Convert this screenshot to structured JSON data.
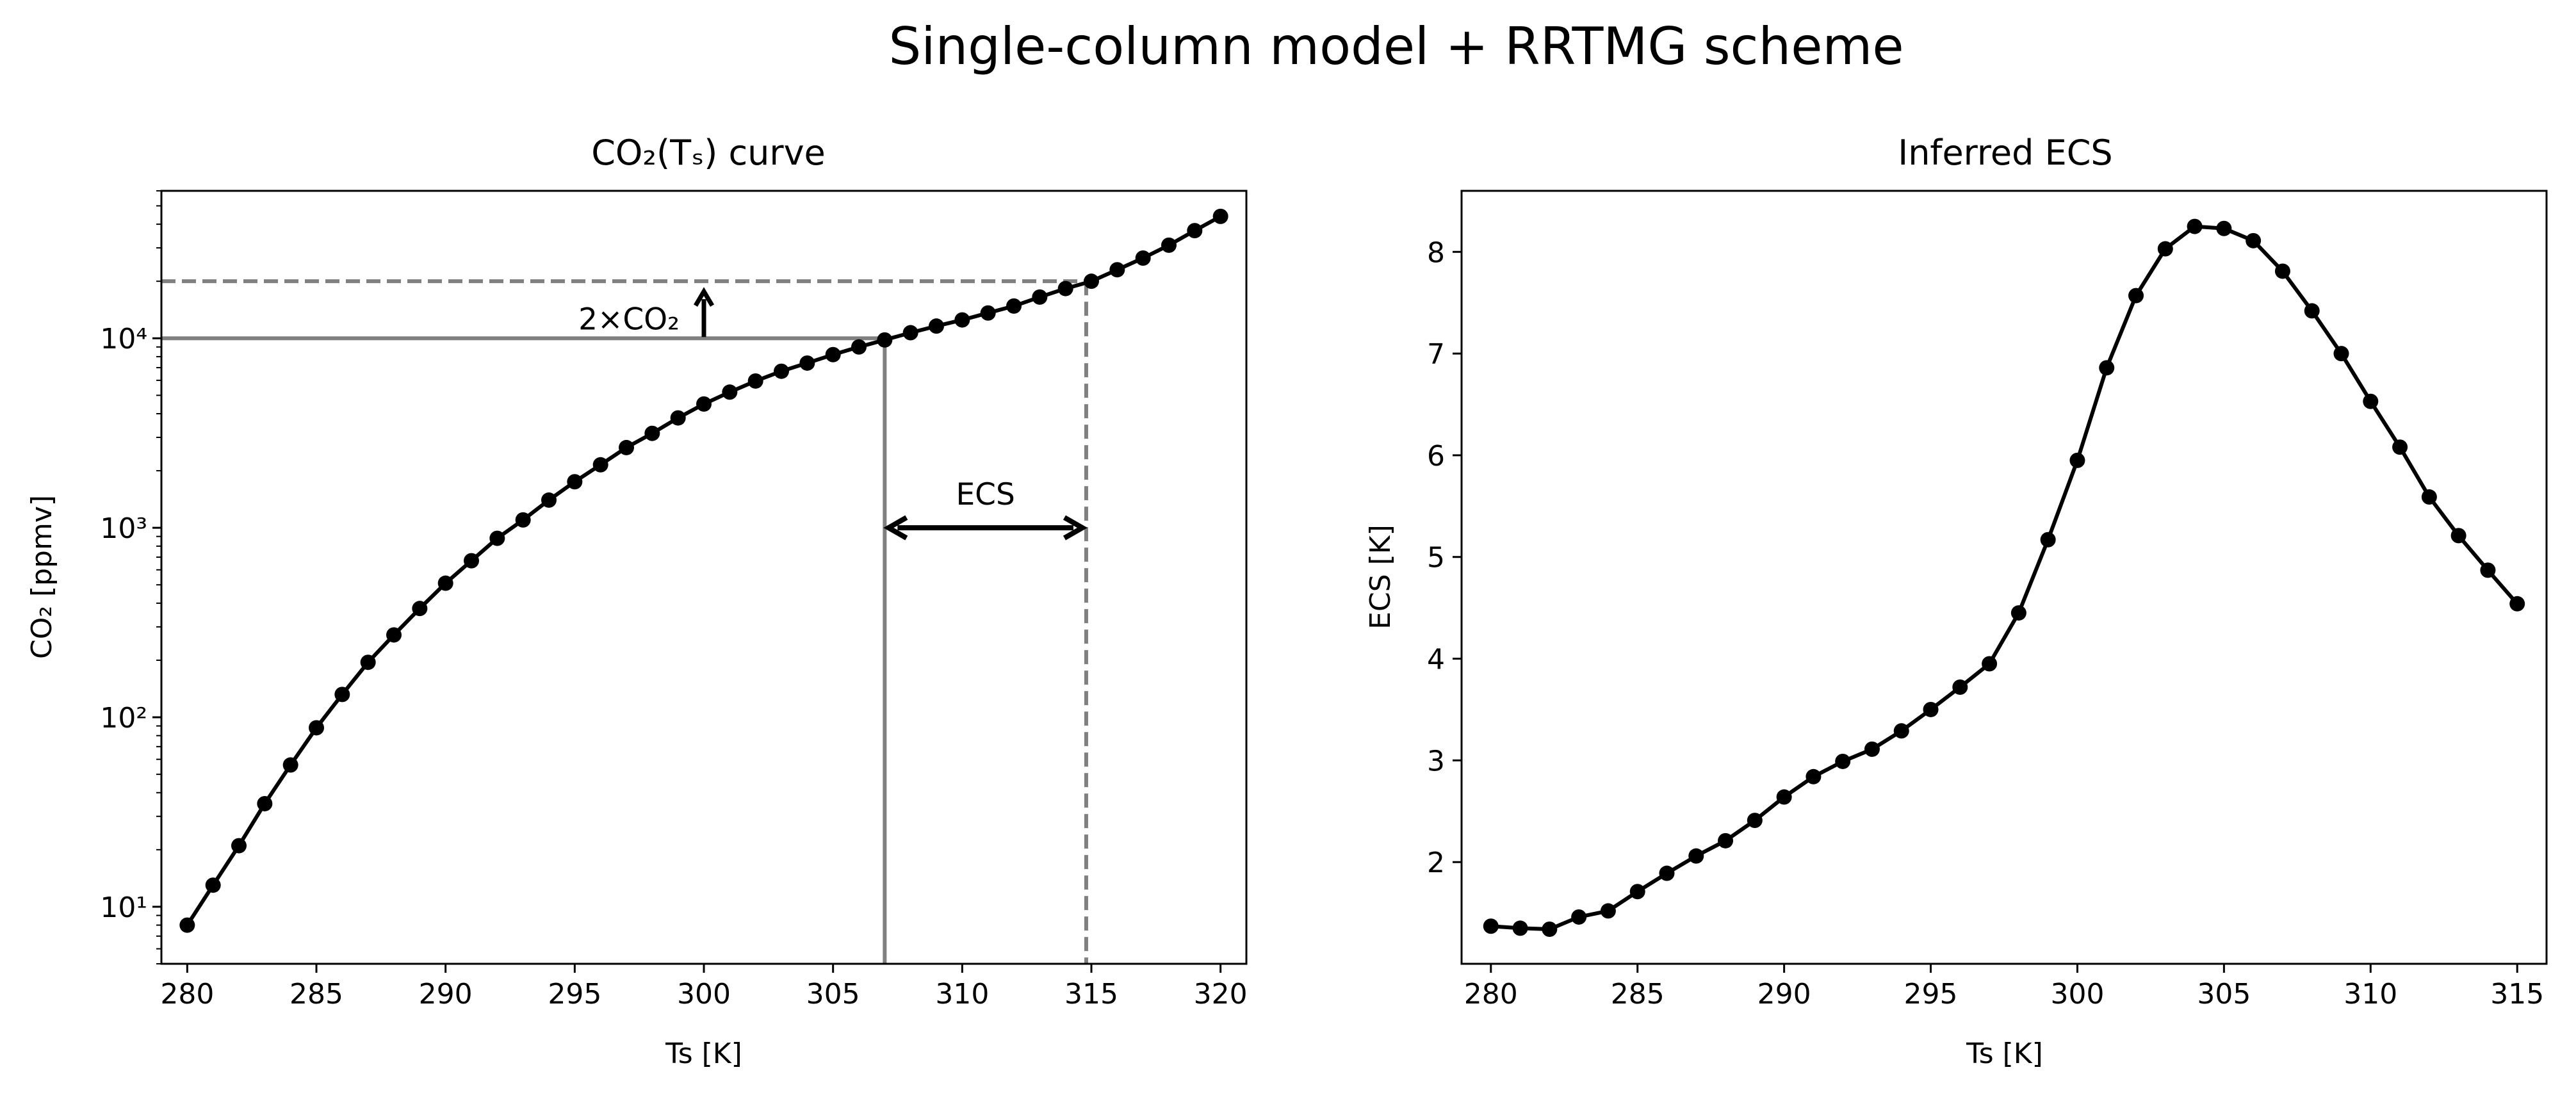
{
  "suptitle": "Single-column model + RRTMG scheme",
  "chart_data": [
    {
      "type": "line",
      "title": "CO₂(Tₛ) curve",
      "xlabel": "Ts [K]",
      "ylabel": "CO₂ [ppmv]",
      "yscale": "log",
      "xlim": [
        279,
        321
      ],
      "ylim": [
        5,
        60000
      ],
      "xticks": [
        280,
        285,
        290,
        295,
        300,
        305,
        310,
        315,
        320
      ],
      "yticks": [
        10,
        100,
        1000,
        10000
      ],
      "ytick_labels": [
        "10¹",
        "10²",
        "10³",
        "10⁴"
      ],
      "grid": false,
      "series": [
        {
          "color": "#000000",
          "marker": "circle",
          "x": [
            280,
            281,
            282,
            283,
            284,
            285,
            286,
            287,
            288,
            289,
            290,
            291,
            292,
            293,
            294,
            295,
            296,
            297,
            298,
            299,
            300,
            301,
            302,
            303,
            304,
            305,
            306,
            307,
            308,
            309,
            310,
            311,
            312,
            313,
            314,
            315,
            316,
            317,
            318,
            319,
            320
          ],
          "y": [
            8,
            13,
            21,
            35,
            56,
            88,
            132,
            195,
            272,
            375,
            510,
            670,
            880,
            1100,
            1400,
            1750,
            2150,
            2650,
            3150,
            3800,
            4500,
            5200,
            5950,
            6700,
            7400,
            8200,
            9000,
            9800,
            10700,
            11600,
            12500,
            13600,
            14800,
            16500,
            18300,
            20000,
            23000,
            26500,
            31000,
            37000,
            44000
          ]
        }
      ],
      "reference_lines": {
        "co2_1x": 10000,
        "co2_2x": 20000,
        "ts_1x": 307,
        "ts_2x": 314.8,
        "color": "#808080"
      },
      "annotations": {
        "doubling_label": "2×CO₂",
        "ecs_label": "ECS",
        "ecs_arrow_y": 1000,
        "doubling_arrow_x": 300
      }
    },
    {
      "type": "line",
      "title": "Inferred ECS",
      "xlabel": "Ts [K]",
      "ylabel": "ECS [K]",
      "xlim": [
        279,
        316
      ],
      "ylim": [
        1.0,
        8.6
      ],
      "xticks": [
        280,
        285,
        290,
        295,
        300,
        305,
        310,
        315
      ],
      "yticks": [
        2,
        3,
        4,
        5,
        6,
        7,
        8
      ],
      "grid": false,
      "series": [
        {
          "color": "#000000",
          "marker": "circle",
          "x": [
            280,
            281,
            282,
            283,
            284,
            285,
            286,
            287,
            288,
            289,
            290,
            291,
            292,
            293,
            294,
            295,
            296,
            297,
            298,
            299,
            300,
            301,
            302,
            303,
            304,
            305,
            306,
            307,
            308,
            309,
            310,
            311,
            312,
            313,
            314,
            315
          ],
          "y": [
            1.37,
            1.35,
            1.34,
            1.46,
            1.52,
            1.71,
            1.89,
            2.06,
            2.21,
            2.41,
            2.64,
            2.84,
            2.99,
            3.11,
            3.29,
            3.5,
            3.72,
            3.95,
            4.45,
            5.17,
            5.95,
            6.86,
            7.57,
            8.03,
            8.25,
            8.23,
            8.11,
            7.81,
            7.42,
            7.0,
            6.53,
            6.08,
            5.59,
            5.21,
            4.87,
            4.54
          ]
        }
      ]
    }
  ]
}
